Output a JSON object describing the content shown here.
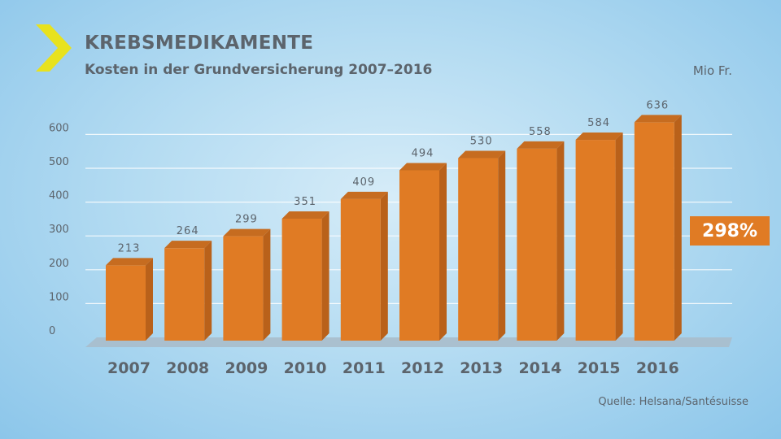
{
  "header": {
    "title": "KREBSMEDIKAMENTE",
    "subtitle": "Kosten in der Grundversicherung 2007–2016",
    "unit": "Mio Fr."
  },
  "footer": {
    "source": "Quelle: Helsana/Santésuisse"
  },
  "badge": {
    "text": "298%"
  },
  "colors": {
    "bar_front": "#e07b24",
    "bar_side": "#b9611a",
    "bar_top": "#c66c20",
    "accent_chevron": "#e8e21e",
    "text": "#5c646c",
    "gridline": "#ffffff",
    "floor": "#a9bccb"
  },
  "chart_data": {
    "type": "bar",
    "title": "KREBSMEDIKAMENTE",
    "subtitle": "Kosten in der Grundversicherung 2007–2016",
    "ylabel": "Mio Fr.",
    "xlabel": "",
    "categories": [
      "2007",
      "2008",
      "2009",
      "2010",
      "2011",
      "2012",
      "2013",
      "2014",
      "2015",
      "2016"
    ],
    "values": [
      213,
      264,
      299,
      351,
      409,
      494,
      530,
      558,
      584,
      636
    ],
    "ylim": [
      0,
      650
    ],
    "yticks": [
      0,
      100,
      200,
      300,
      400,
      500,
      600
    ],
    "grid": true,
    "data_labels": true,
    "style": "3d"
  }
}
